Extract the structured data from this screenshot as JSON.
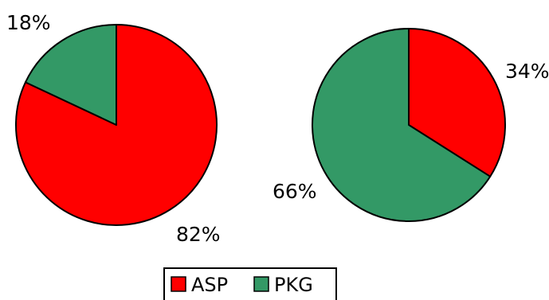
{
  "chart_data": [
    {
      "type": "pie",
      "slices": [
        {
          "label": "ASP",
          "value": 82,
          "display": "82%"
        },
        {
          "label": "PKG",
          "value": 18,
          "display": "18%"
        }
      ]
    },
    {
      "type": "pie",
      "slices": [
        {
          "label": "ASP",
          "value": 34,
          "display": "34%"
        },
        {
          "label": "PKG",
          "value": 66,
          "display": "66%"
        }
      ]
    }
  ],
  "legend": {
    "placement": "bottom",
    "items": [
      {
        "label": "ASP",
        "color": "#ff0000"
      },
      {
        "label": "PKG",
        "color": "#339966"
      }
    ]
  },
  "colors": {
    "ASP": "#ff0000",
    "PKG": "#339966"
  }
}
